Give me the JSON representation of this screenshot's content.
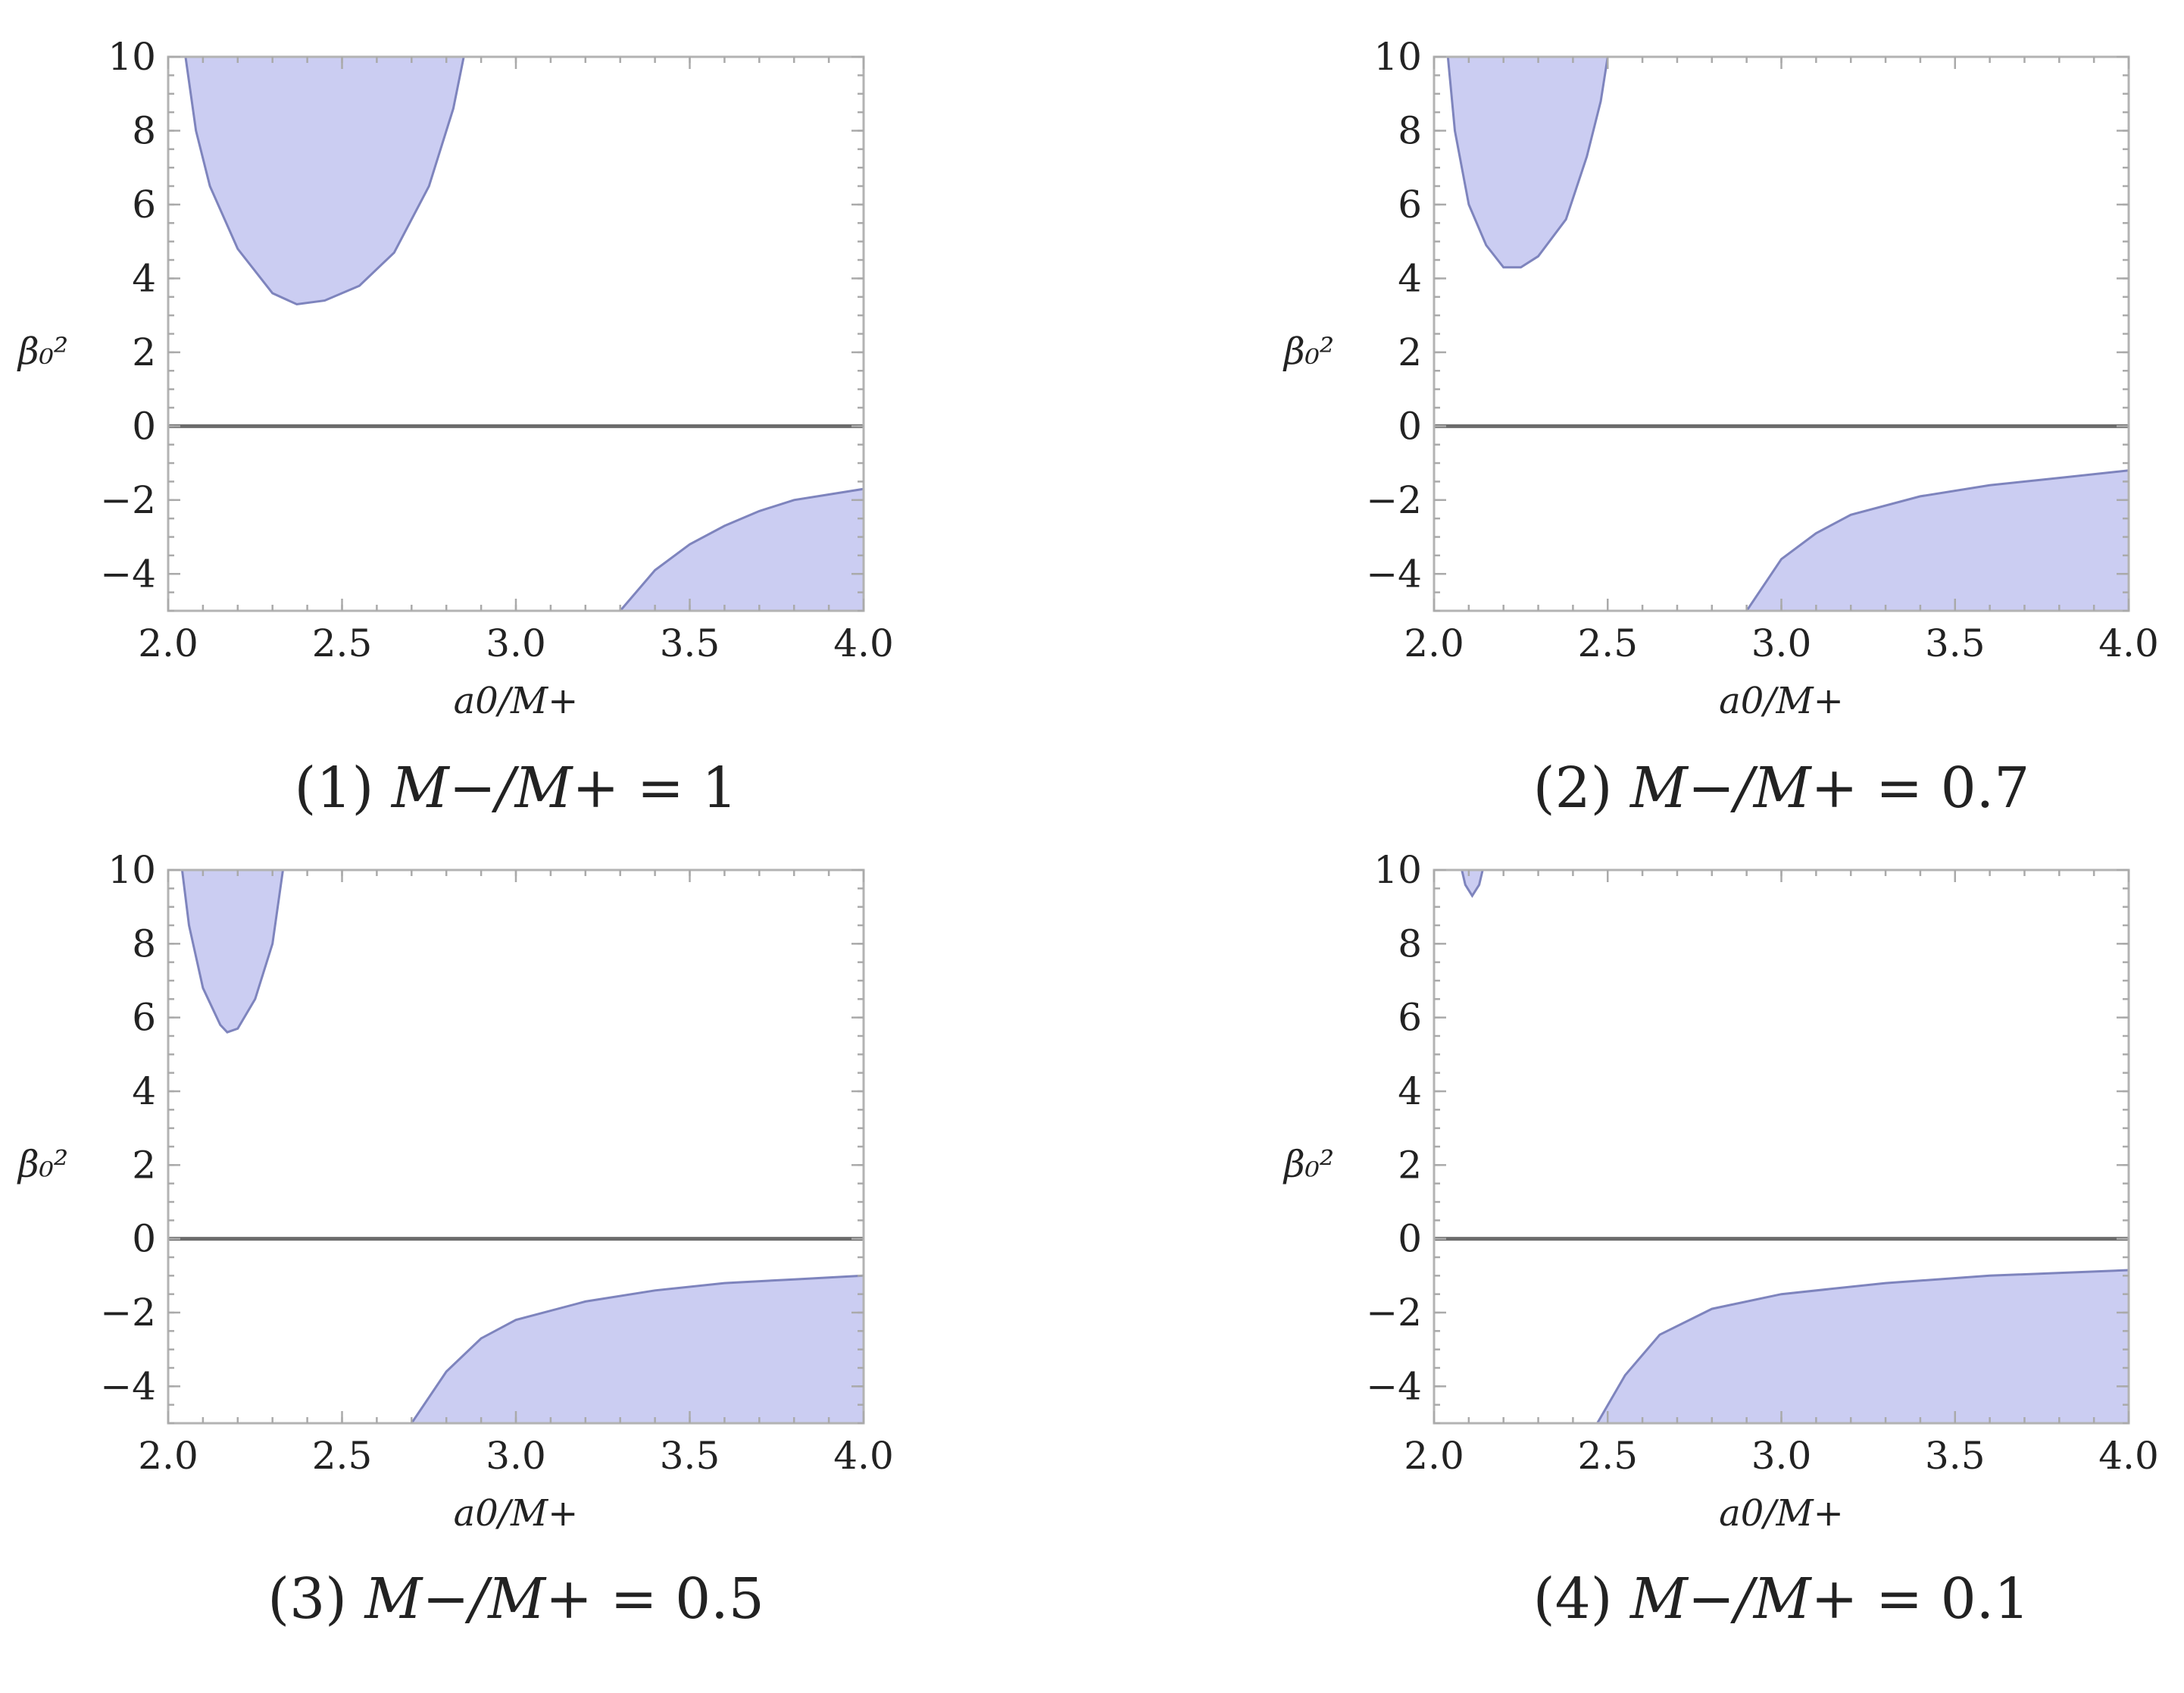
{
  "colors": {
    "region_fill": "#cbcdf2",
    "region_stroke": "#7e84bd",
    "zero_line": "#6b6b6b",
    "frame": "#b3b3b3"
  },
  "chart_data": [
    {
      "type": "area",
      "caption": "(1) M−/M+ = 1",
      "caption_parts": {
        "index": "(1)",
        "ratio": "M−/M+",
        "equals": "=",
        "value": "1"
      },
      "xlabel": "a0/M+",
      "ylabel": "β₀²",
      "xlim": [
        2.0,
        4.0
      ],
      "ylim": [
        -5,
        10
      ],
      "xticks": [
        "2.0",
        "2.5",
        "3.0",
        "3.5",
        "4.0"
      ],
      "yticks": [
        "10",
        "8",
        "6",
        "4",
        "2",
        "0",
        "−2",
        "−4"
      ],
      "zero_line": 0,
      "regions": [
        {
          "name": "upper",
          "points": [
            [
              2.05,
              10
            ],
            [
              2.08,
              8
            ],
            [
              2.12,
              6.5
            ],
            [
              2.2,
              4.8
            ],
            [
              2.3,
              3.6
            ],
            [
              2.37,
              3.3
            ],
            [
              2.45,
              3.4
            ],
            [
              2.55,
              3.8
            ],
            [
              2.65,
              4.7
            ],
            [
              2.75,
              6.5
            ],
            [
              2.82,
              8.6
            ],
            [
              2.85,
              10
            ]
          ]
        },
        {
          "name": "lower",
          "points": [
            [
              3.3,
              -5
            ],
            [
              3.4,
              -3.9
            ],
            [
              3.5,
              -3.2
            ],
            [
              3.6,
              -2.7
            ],
            [
              3.7,
              -2.3
            ],
            [
              3.8,
              -2.0
            ],
            [
              3.9,
              -1.85
            ],
            [
              4.0,
              -1.7
            ]
          ]
        }
      ]
    },
    {
      "type": "area",
      "caption": "(2) M−/M+ = 0.7",
      "caption_parts": {
        "index": "(2)",
        "ratio": "M−/M+",
        "equals": "=",
        "value": "0.7"
      },
      "xlabel": "a0/M+",
      "ylabel": "β₀²",
      "xlim": [
        2.0,
        4.0
      ],
      "ylim": [
        -5,
        10
      ],
      "xticks": [
        "2.0",
        "2.5",
        "3.0",
        "3.5",
        "4.0"
      ],
      "yticks": [
        "10",
        "8",
        "6",
        "4",
        "2",
        "0",
        "−2",
        "−4"
      ],
      "zero_line": 0,
      "regions": [
        {
          "name": "upper",
          "points": [
            [
              2.04,
              10
            ],
            [
              2.06,
              8
            ],
            [
              2.1,
              6
            ],
            [
              2.15,
              4.9
            ],
            [
              2.2,
              4.3
            ],
            [
              2.25,
              4.3
            ],
            [
              2.3,
              4.6
            ],
            [
              2.38,
              5.6
            ],
            [
              2.44,
              7.3
            ],
            [
              2.48,
              8.8
            ],
            [
              2.5,
              10
            ]
          ]
        },
        {
          "name": "lower",
          "points": [
            [
              2.9,
              -5
            ],
            [
              3.0,
              -3.6
            ],
            [
              3.1,
              -2.9
            ],
            [
              3.2,
              -2.4
            ],
            [
              3.4,
              -1.9
            ],
            [
              3.6,
              -1.6
            ],
            [
              3.8,
              -1.4
            ],
            [
              4.0,
              -1.2
            ]
          ]
        }
      ]
    },
    {
      "type": "area",
      "caption": "(3) M−/M+ = 0.5",
      "caption_parts": {
        "index": "(3)",
        "ratio": "M−/M+",
        "equals": "=",
        "value": "0.5"
      },
      "xlabel": "a0/M+",
      "ylabel": "β₀²",
      "xlim": [
        2.0,
        4.0
      ],
      "ylim": [
        -5,
        10
      ],
      "xticks": [
        "2.0",
        "2.5",
        "3.0",
        "3.5",
        "4.0"
      ],
      "yticks": [
        "10",
        "8",
        "6",
        "4",
        "2",
        "0",
        "−2",
        "−4"
      ],
      "zero_line": 0,
      "regions": [
        {
          "name": "upper",
          "points": [
            [
              2.04,
              10
            ],
            [
              2.06,
              8.5
            ],
            [
              2.1,
              6.8
            ],
            [
              2.15,
              5.8
            ],
            [
              2.17,
              5.6
            ],
            [
              2.2,
              5.7
            ],
            [
              2.25,
              6.5
            ],
            [
              2.3,
              8.0
            ],
            [
              2.33,
              10
            ]
          ]
        },
        {
          "name": "lower",
          "points": [
            [
              2.7,
              -5
            ],
            [
              2.8,
              -3.6
            ],
            [
              2.9,
              -2.7
            ],
            [
              3.0,
              -2.2
            ],
            [
              3.2,
              -1.7
            ],
            [
              3.4,
              -1.4
            ],
            [
              3.6,
              -1.2
            ],
            [
              3.8,
              -1.1
            ],
            [
              4.0,
              -1.0
            ]
          ]
        }
      ]
    },
    {
      "type": "area",
      "caption": "(4) M−/M+ = 0.1",
      "caption_parts": {
        "index": "(4)",
        "ratio": "M−/M+",
        "equals": "=",
        "value": "0.1"
      },
      "xlabel": "a0/M+",
      "ylabel": "β₀²",
      "xlim": [
        2.0,
        4.0
      ],
      "ylim": [
        -5,
        10
      ],
      "xticks": [
        "2.0",
        "2.5",
        "3.0",
        "3.5",
        "4.0"
      ],
      "yticks": [
        "10",
        "8",
        "6",
        "4",
        "2",
        "0",
        "−2",
        "−4"
      ],
      "zero_line": 0,
      "regions": [
        {
          "name": "upper",
          "points": [
            [
              2.08,
              10
            ],
            [
              2.09,
              9.6
            ],
            [
              2.11,
              9.3
            ],
            [
              2.13,
              9.6
            ],
            [
              2.14,
              10
            ]
          ]
        },
        {
          "name": "lower",
          "points": [
            [
              2.47,
              -5
            ],
            [
              2.55,
              -3.7
            ],
            [
              2.65,
              -2.6
            ],
            [
              2.8,
              -1.9
            ],
            [
              3.0,
              -1.5
            ],
            [
              3.3,
              -1.2
            ],
            [
              3.6,
              -1.0
            ],
            [
              4.0,
              -0.85
            ]
          ]
        }
      ]
    }
  ]
}
